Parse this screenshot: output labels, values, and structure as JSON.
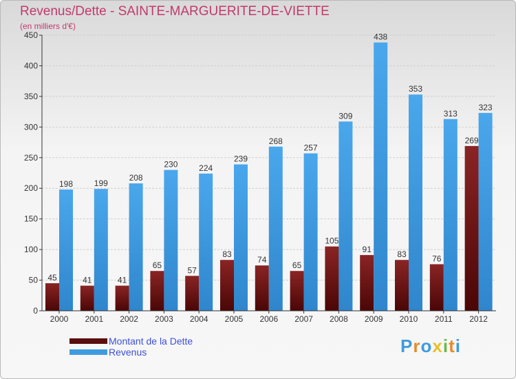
{
  "header": {
    "title": "Revenus/Dette - SAINTE-MARGUERITE-DE-VIETTE",
    "subtitle": "(en milliers d'€)"
  },
  "legend": {
    "debt_label": "Montant de la Dette",
    "revenue_label": "Revenus"
  },
  "logo": {
    "text": "Proxiti",
    "letters": [
      "P",
      "r",
      "o",
      "x",
      "i",
      "t",
      "i"
    ]
  },
  "colors": {
    "debt": "#7a1a1a",
    "revenue": "#3f9be0",
    "title": "#c13a6b",
    "legend_text": "#3d4fd8",
    "logo": [
      "#3f9be0",
      "#e88a2a",
      "#3f9be0",
      "#e8c02a",
      "#69b84a",
      "#e88a2a",
      "#3f9be0"
    ]
  },
  "chart_data": {
    "type": "bar",
    "title": "Revenus/Dette - SAINTE-MARGUERITE-DE-VIETTE",
    "ylabel": "(en milliers d'€)",
    "xlabel": "",
    "categories": [
      "2000",
      "2001",
      "2002",
      "2003",
      "2004",
      "2005",
      "2006",
      "2007",
      "2008",
      "2009",
      "2010",
      "2011",
      "2012"
    ],
    "series": [
      {
        "name": "Montant de la Dette",
        "values": [
          45,
          41,
          41,
          65,
          57,
          83,
          74,
          65,
          105,
          91,
          83,
          76,
          269
        ]
      },
      {
        "name": "Revenus",
        "values": [
          198,
          199,
          208,
          230,
          224,
          239,
          268,
          257,
          309,
          438,
          353,
          313,
          323
        ]
      }
    ],
    "ylim": [
      0,
      450
    ],
    "yticks": [
      0,
      50,
      100,
      150,
      200,
      250,
      300,
      350,
      400,
      450
    ],
    "grid": true,
    "legend_position": "bottom-left"
  }
}
